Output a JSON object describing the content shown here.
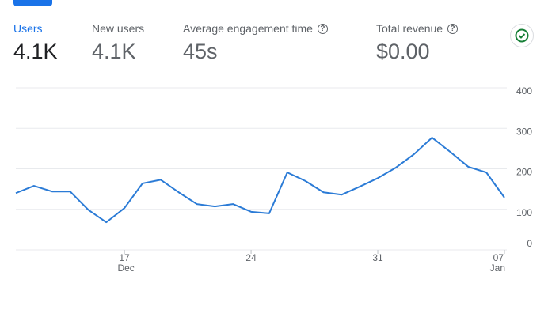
{
  "metrics": [
    {
      "label": "Users",
      "value": "4.1K",
      "help": false
    },
    {
      "label": "New users",
      "value": "4.1K",
      "help": false
    },
    {
      "label": "Average engagement time",
      "value": "45s",
      "help": true
    },
    {
      "label": "Total revenue",
      "value": "$0.00",
      "help": true
    }
  ],
  "selected_metric": 0,
  "chart_data": {
    "type": "line",
    "categories": [
      null,
      null,
      null,
      null,
      null,
      null,
      "17",
      null,
      null,
      null,
      null,
      null,
      null,
      "24",
      null,
      null,
      null,
      null,
      null,
      null,
      "31",
      null,
      null,
      null,
      null,
      null,
      null,
      "07"
    ],
    "category_months": [
      null,
      null,
      null,
      null,
      null,
      null,
      "Dec",
      null,
      null,
      null,
      null,
      null,
      null,
      null,
      null,
      null,
      null,
      null,
      null,
      null,
      null,
      null,
      null,
      null,
      null,
      null,
      null,
      "Jan"
    ],
    "values": [
      140,
      158,
      144,
      144,
      99,
      68,
      103,
      164,
      173,
      142,
      113,
      107,
      113,
      94,
      90,
      191,
      170,
      142,
      136,
      156,
      177,
      203,
      236,
      277,
      242,
      205,
      191,
      129
    ],
    "color": "#2b7bd6",
    "ylim": [
      0,
      400
    ],
    "yticks": [
      0,
      100,
      200,
      300,
      400
    ],
    "grid": true
  }
}
